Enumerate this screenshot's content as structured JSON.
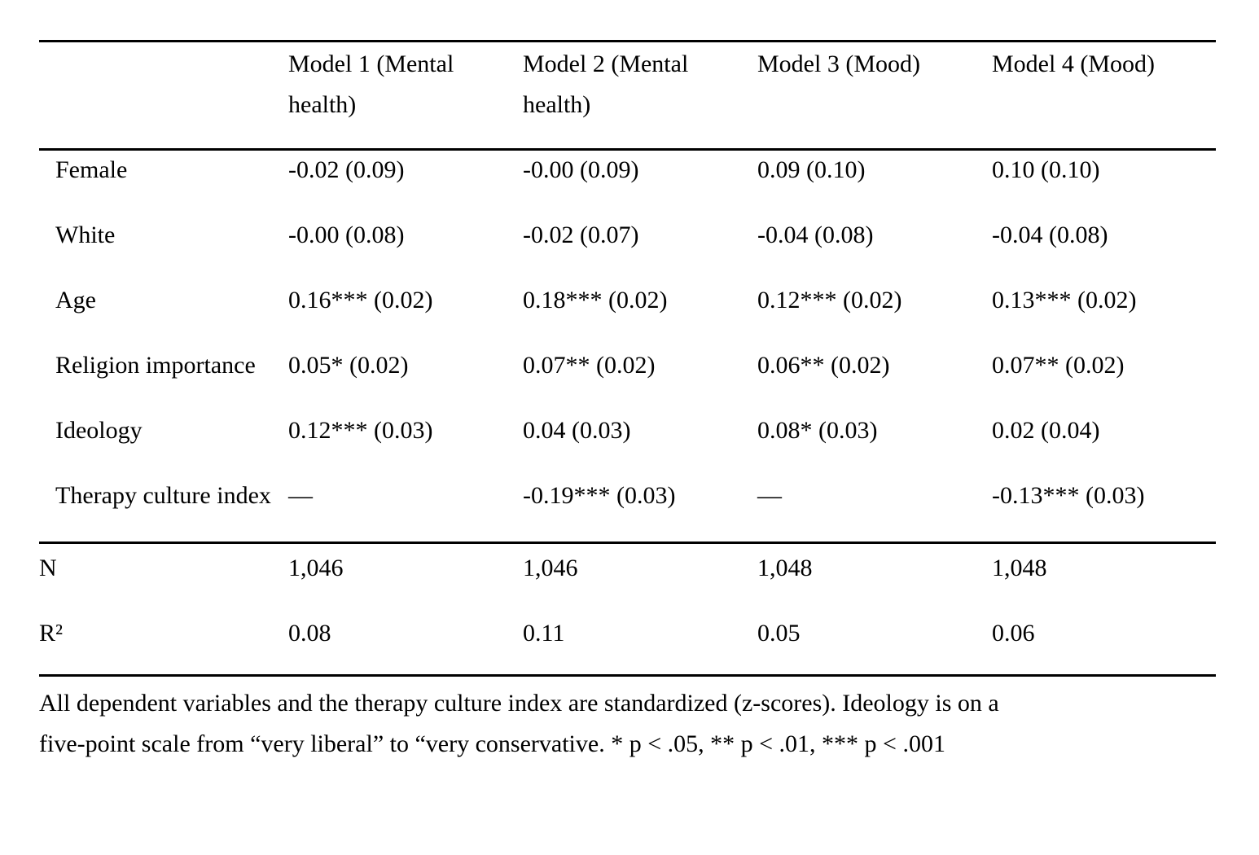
{
  "table": {
    "columns": [
      "Model 1 (Mental health)",
      "Model 2 (Mental health)",
      "Model 3 (Mood)",
      "Model 4 (Mood)"
    ],
    "rows": [
      {
        "label": "Female",
        "values": [
          "-0.02 (0.09)",
          "-0.00 (0.09)",
          "0.09 (0.10)",
          "0.10 (0.10)"
        ]
      },
      {
        "label": "White",
        "values": [
          "-0.00 (0.08)",
          "-0.02 (0.07)",
          "-0.04 (0.08)",
          "-0.04 (0.08)"
        ]
      },
      {
        "label": "Age",
        "values": [
          "0.16*** (0.02)",
          "0.18*** (0.02)",
          "0.12*** (0.02)",
          "0.13*** (0.02)"
        ]
      },
      {
        "label": "Religion importance",
        "values": [
          "0.05* (0.02)",
          "0.07** (0.02)",
          "0.06** (0.02)",
          "0.07** (0.02)"
        ]
      },
      {
        "label": "Ideology",
        "values": [
          "0.12*** (0.03)",
          "0.04 (0.03)",
          "0.08* (0.03)",
          "0.02 (0.04)"
        ]
      },
      {
        "label": "Therapy culture index",
        "values": [
          "—",
          "-0.19*** (0.03)",
          "—",
          "-0.13*** (0.03)"
        ]
      }
    ],
    "stats": [
      {
        "label": "N",
        "values": [
          "1,046",
          "1,046",
          "1,048",
          "1,048"
        ]
      },
      {
        "label": "R²",
        "values": [
          "0.08",
          "0.11",
          "0.05",
          "0.06"
        ]
      }
    ]
  },
  "footnote": {
    "lines": [
      "All dependent variables and the therapy culture index are standardized (z-scores). Ideology is on a",
      "five-point scale from “very liberal” to “very conservative. * p < .05, ** p < .01, *** p < .001"
    ]
  }
}
